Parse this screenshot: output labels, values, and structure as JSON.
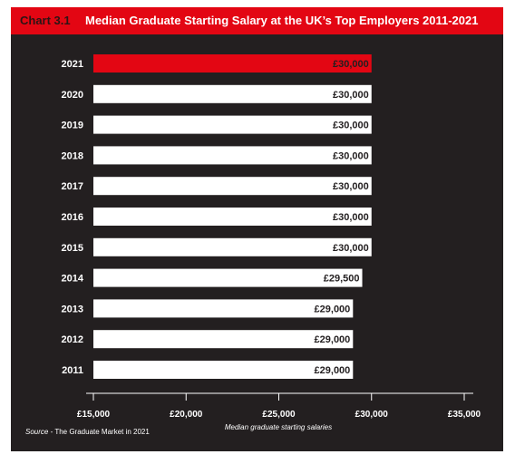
{
  "title": {
    "label": "Chart 3.1",
    "text": "Median Graduate Starting Salary at the UK’s Top Employers 2011-2021"
  },
  "source": {
    "prefix": "Source",
    "text": " - The Graduate Market in 2021"
  },
  "colors": {
    "panel": "#231f20",
    "title_bar": "#e30613",
    "highlight_bar": "#e30613",
    "bar": "#ffffff",
    "bar_label_on_white": "#231f20",
    "bar_label_on_red": "#231f20",
    "axis": "#ffffff"
  },
  "chart_data": {
    "type": "bar",
    "orientation": "horizontal",
    "categories": [
      "2021",
      "2020",
      "2019",
      "2018",
      "2017",
      "2016",
      "2015",
      "2014",
      "2013",
      "2012",
      "2011"
    ],
    "values": [
      30000,
      30000,
      30000,
      30000,
      30000,
      30000,
      30000,
      29500,
      29000,
      29000,
      29000
    ],
    "value_labels": [
      "£30,000",
      "£30,000",
      "£30,000",
      "£30,000",
      "£30,000",
      "£30,000",
      "£30,000",
      "£29,500",
      "£29,000",
      "£29,000",
      "£29,000"
    ],
    "highlight_category": "2021",
    "title": "Median Graduate Starting Salary at the UK’s Top Employers 2011-2021",
    "xlabel": "Median graduate starting salaries",
    "ylabel": "",
    "xlim": [
      15000,
      35000
    ],
    "x_ticks": [
      15000,
      20000,
      25000,
      30000,
      35000
    ],
    "x_tick_labels": [
      "£15,000",
      "£20,000",
      "£25,000",
      "£30,000",
      "£35,000"
    ],
    "grid": false,
    "legend": "none"
  }
}
